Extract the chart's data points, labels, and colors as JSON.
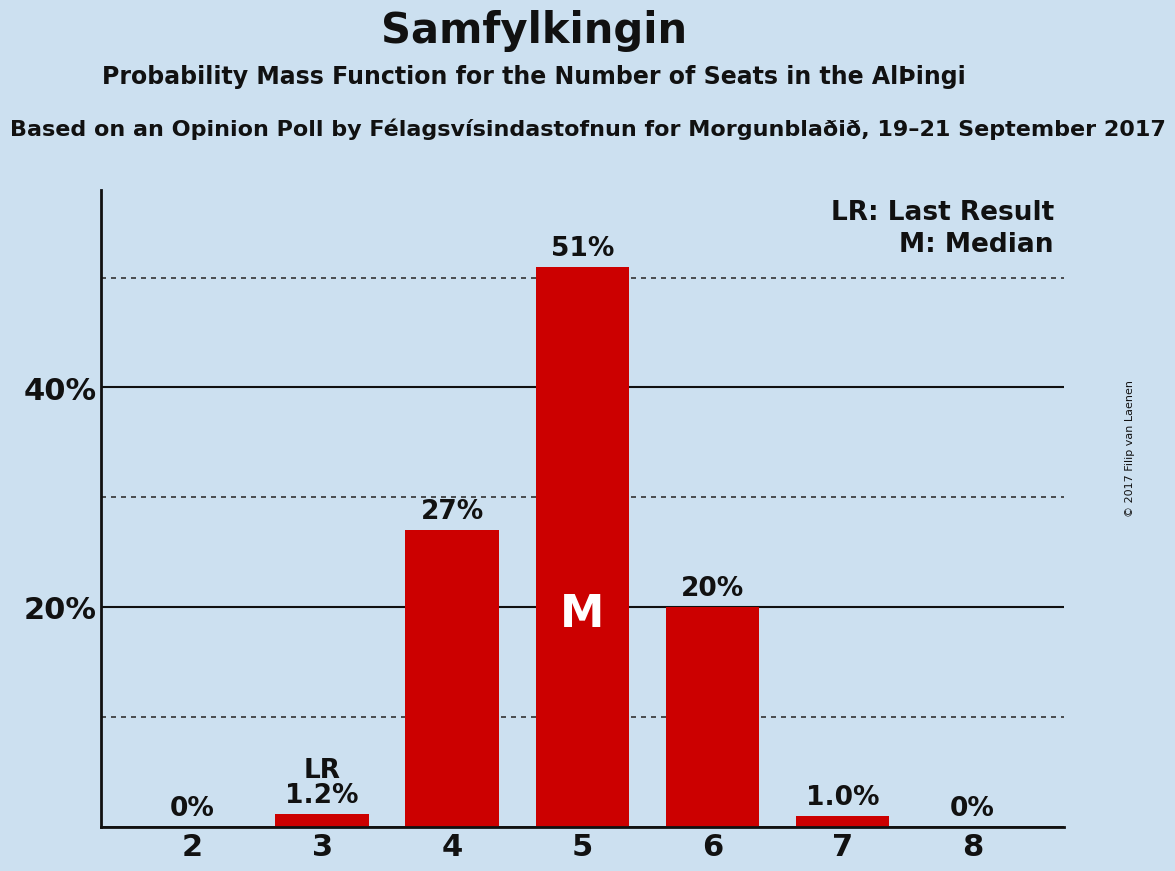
{
  "title": "Samfylkingin",
  "subtitle": "Probability Mass Function for the Number of Seats in the AlÞingi",
  "source_line2": "Based on an Opinion Poll by Félagsvísindastofnun for Morgunblaðið, 19–21 September 2017",
  "copyright": "© 2017 Filip van Laenen",
  "seats": [
    2,
    3,
    4,
    5,
    6,
    7,
    8
  ],
  "probabilities": [
    0.0,
    1.2,
    27.0,
    51.0,
    20.0,
    1.0,
    0.0
  ],
  "bar_color": "#cc0000",
  "bar_labels": [
    "0%",
    "1.2%",
    "27%",
    "51%",
    "20%",
    "1.0%",
    "0%"
  ],
  "median_seat": 5,
  "last_result_seat": 3,
  "background_color": "#cce0f0",
  "solid_yticks": [
    0,
    20,
    40
  ],
  "dotted_yticks": [
    10,
    30,
    50
  ],
  "ylim": [
    0,
    58
  ],
  "legend_lr": "LR: Last Result",
  "legend_m": "M: Median",
  "title_fontsize": 30,
  "subtitle_fontsize": 17,
  "source_fontsize": 16,
  "bar_label_fontsize": 19,
  "ytick_fontsize": 22,
  "xtick_fontsize": 22,
  "median_label_fontsize": 32
}
